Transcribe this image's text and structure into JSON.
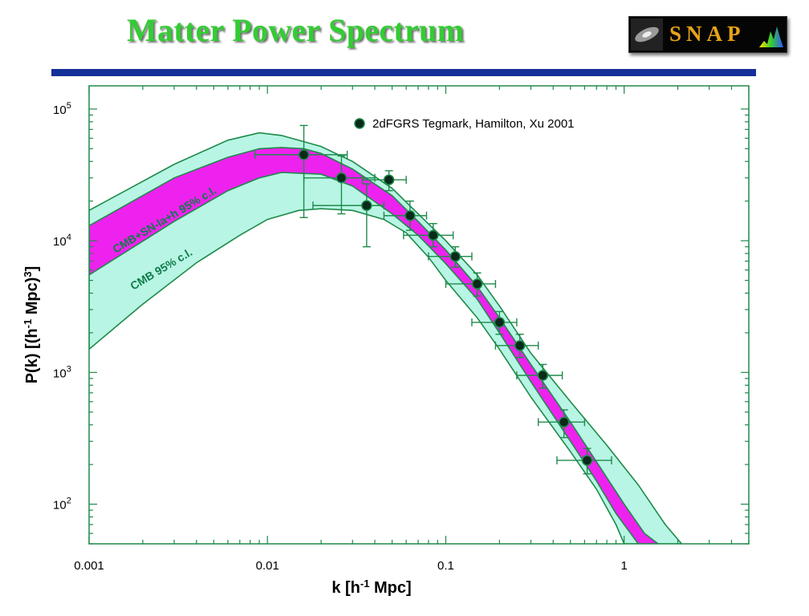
{
  "slide": {
    "title": "Matter Power Spectrum",
    "logo_text": "SNAP",
    "rule_color": "#16309a",
    "title_color": "#33cc33"
  },
  "chart_data": {
    "type": "scatter",
    "xlabel": "k [h⁻¹ Mpc]",
    "ylabel": "P(k) [(h⁻¹ Mpc)³]",
    "x_scale": "log",
    "y_scale": "log",
    "xlim": [
      0.001,
      5
    ],
    "ylim": [
      50,
      150000
    ],
    "x_ticks": [
      {
        "v": 0.001,
        "label": "0.001"
      },
      {
        "v": 0.01,
        "label": "0.01"
      },
      {
        "v": 0.1,
        "label": "0.1"
      },
      {
        "v": 1,
        "label": "1"
      }
    ],
    "y_ticks": [
      {
        "v": 100,
        "base": "10",
        "exp": "2"
      },
      {
        "v": 1000,
        "base": "10",
        "exp": "3"
      },
      {
        "v": 10000,
        "base": "10",
        "exp": "4"
      },
      {
        "v": 100000,
        "base": "10",
        "exp": "5"
      }
    ],
    "grid": false,
    "legend_position": "top-right",
    "colors": {
      "band_outer": "#b8f5e4",
      "band_inner": "#ee22ee",
      "edge": "#1e8a4a",
      "point": "#0a2a1a"
    },
    "series": [
      {
        "name": "2dFGRS Tegmark, Hamilton, Xu 2001",
        "points": [
          {
            "x": 0.016,
            "y": 45000,
            "xlo": 0.0085,
            "xhi": 0.028,
            "ylo": 15000,
            "yhi": 75000
          },
          {
            "x": 0.026,
            "y": 30000,
            "xlo": 0.016,
            "xhi": 0.04,
            "ylo": 16000,
            "yhi": 44000
          },
          {
            "x": 0.036,
            "y": 18500,
            "xlo": 0.018,
            "xhi": 0.045,
            "ylo": 9000,
            "yhi": 27000
          },
          {
            "x": 0.048,
            "y": 29000,
            "xlo": 0.034,
            "xhi": 0.06,
            "ylo": 24000,
            "yhi": 34000
          },
          {
            "x": 0.063,
            "y": 15500,
            "xlo": 0.045,
            "xhi": 0.078,
            "ylo": 12000,
            "yhi": 20000
          },
          {
            "x": 0.085,
            "y": 11000,
            "xlo": 0.058,
            "xhi": 0.11,
            "ylo": 9000,
            "yhi": 13500
          },
          {
            "x": 0.113,
            "y": 7600,
            "xlo": 0.08,
            "xhi": 0.14,
            "ylo": 6300,
            "yhi": 9000
          },
          {
            "x": 0.15,
            "y": 4700,
            "xlo": 0.1,
            "xhi": 0.19,
            "ylo": 3800,
            "yhi": 5700
          },
          {
            "x": 0.2,
            "y": 2400,
            "xlo": 0.14,
            "xhi": 0.25,
            "ylo": 1950,
            "yhi": 2900
          },
          {
            "x": 0.26,
            "y": 1600,
            "xlo": 0.19,
            "xhi": 0.33,
            "ylo": 1300,
            "yhi": 1950
          },
          {
            "x": 0.35,
            "y": 950,
            "xlo": 0.25,
            "xhi": 0.45,
            "ylo": 760,
            "yhi": 1150
          },
          {
            "x": 0.46,
            "y": 420,
            "xlo": 0.33,
            "xhi": 0.6,
            "ylo": 320,
            "yhi": 520
          },
          {
            "x": 0.62,
            "y": 215,
            "xlo": 0.42,
            "xhi": 0.85,
            "ylo": 170,
            "yhi": 265
          }
        ]
      }
    ],
    "bands": [
      {
        "label": "CMB 95% c.l.",
        "upper": [
          [
            0.001,
            17000
          ],
          [
            0.003,
            38000
          ],
          [
            0.006,
            58000
          ],
          [
            0.009,
            66000
          ],
          [
            0.012,
            63000
          ],
          [
            0.02,
            52000
          ],
          [
            0.03,
            40000
          ],
          [
            0.05,
            25000
          ],
          [
            0.07,
            16000
          ],
          [
            0.1,
            10000
          ],
          [
            0.15,
            5500
          ],
          [
            0.2,
            3200
          ],
          [
            0.3,
            1400
          ],
          [
            0.5,
            600
          ],
          [
            0.8,
            280
          ],
          [
            1.2,
            140
          ],
          [
            1.7,
            70
          ],
          [
            2.1,
            50
          ]
        ],
        "lower": [
          [
            0.001,
            1500
          ],
          [
            0.002,
            3300
          ],
          [
            0.004,
            6800
          ],
          [
            0.007,
            11000
          ],
          [
            0.01,
            14500
          ],
          [
            0.015,
            17000
          ],
          [
            0.02,
            17500
          ],
          [
            0.03,
            17000
          ],
          [
            0.045,
            14500
          ],
          [
            0.06,
            11500
          ],
          [
            0.08,
            7500
          ],
          [
            0.1,
            5000
          ],
          [
            0.15,
            2600
          ],
          [
            0.2,
            1500
          ],
          [
            0.3,
            650
          ],
          [
            0.5,
            250
          ],
          [
            0.7,
            130
          ],
          [
            0.9,
            70
          ],
          [
            1,
            50
          ]
        ]
      },
      {
        "label": "CMB+SN-Ia+h 95% c.l.",
        "upper": [
          [
            0.001,
            13000
          ],
          [
            0.003,
            30000
          ],
          [
            0.006,
            43000
          ],
          [
            0.009,
            50000
          ],
          [
            0.012,
            51000
          ],
          [
            0.016,
            50000
          ],
          [
            0.02,
            46000
          ],
          [
            0.03,
            35000
          ],
          [
            0.05,
            22000
          ],
          [
            0.07,
            14000
          ],
          [
            0.1,
            8500
          ],
          [
            0.15,
            4500
          ],
          [
            0.2,
            2600
          ],
          [
            0.3,
            1150
          ],
          [
            0.5,
            420
          ],
          [
            0.7,
            210
          ],
          [
            1,
            100
          ],
          [
            1.3,
            60
          ],
          [
            1.55,
            50
          ]
        ],
        "lower": [
          [
            0.001,
            5500
          ],
          [
            0.003,
            14000
          ],
          [
            0.006,
            24000
          ],
          [
            0.009,
            30000
          ],
          [
            0.012,
            33000
          ],
          [
            0.02,
            32000
          ],
          [
            0.03,
            26000
          ],
          [
            0.05,
            16000
          ],
          [
            0.07,
            11000
          ],
          [
            0.1,
            6700
          ],
          [
            0.15,
            3600
          ],
          [
            0.2,
            2000
          ],
          [
            0.3,
            850
          ],
          [
            0.5,
            300
          ],
          [
            0.7,
            150
          ],
          [
            0.9,
            85
          ],
          [
            1.2,
            50
          ]
        ]
      }
    ]
  }
}
